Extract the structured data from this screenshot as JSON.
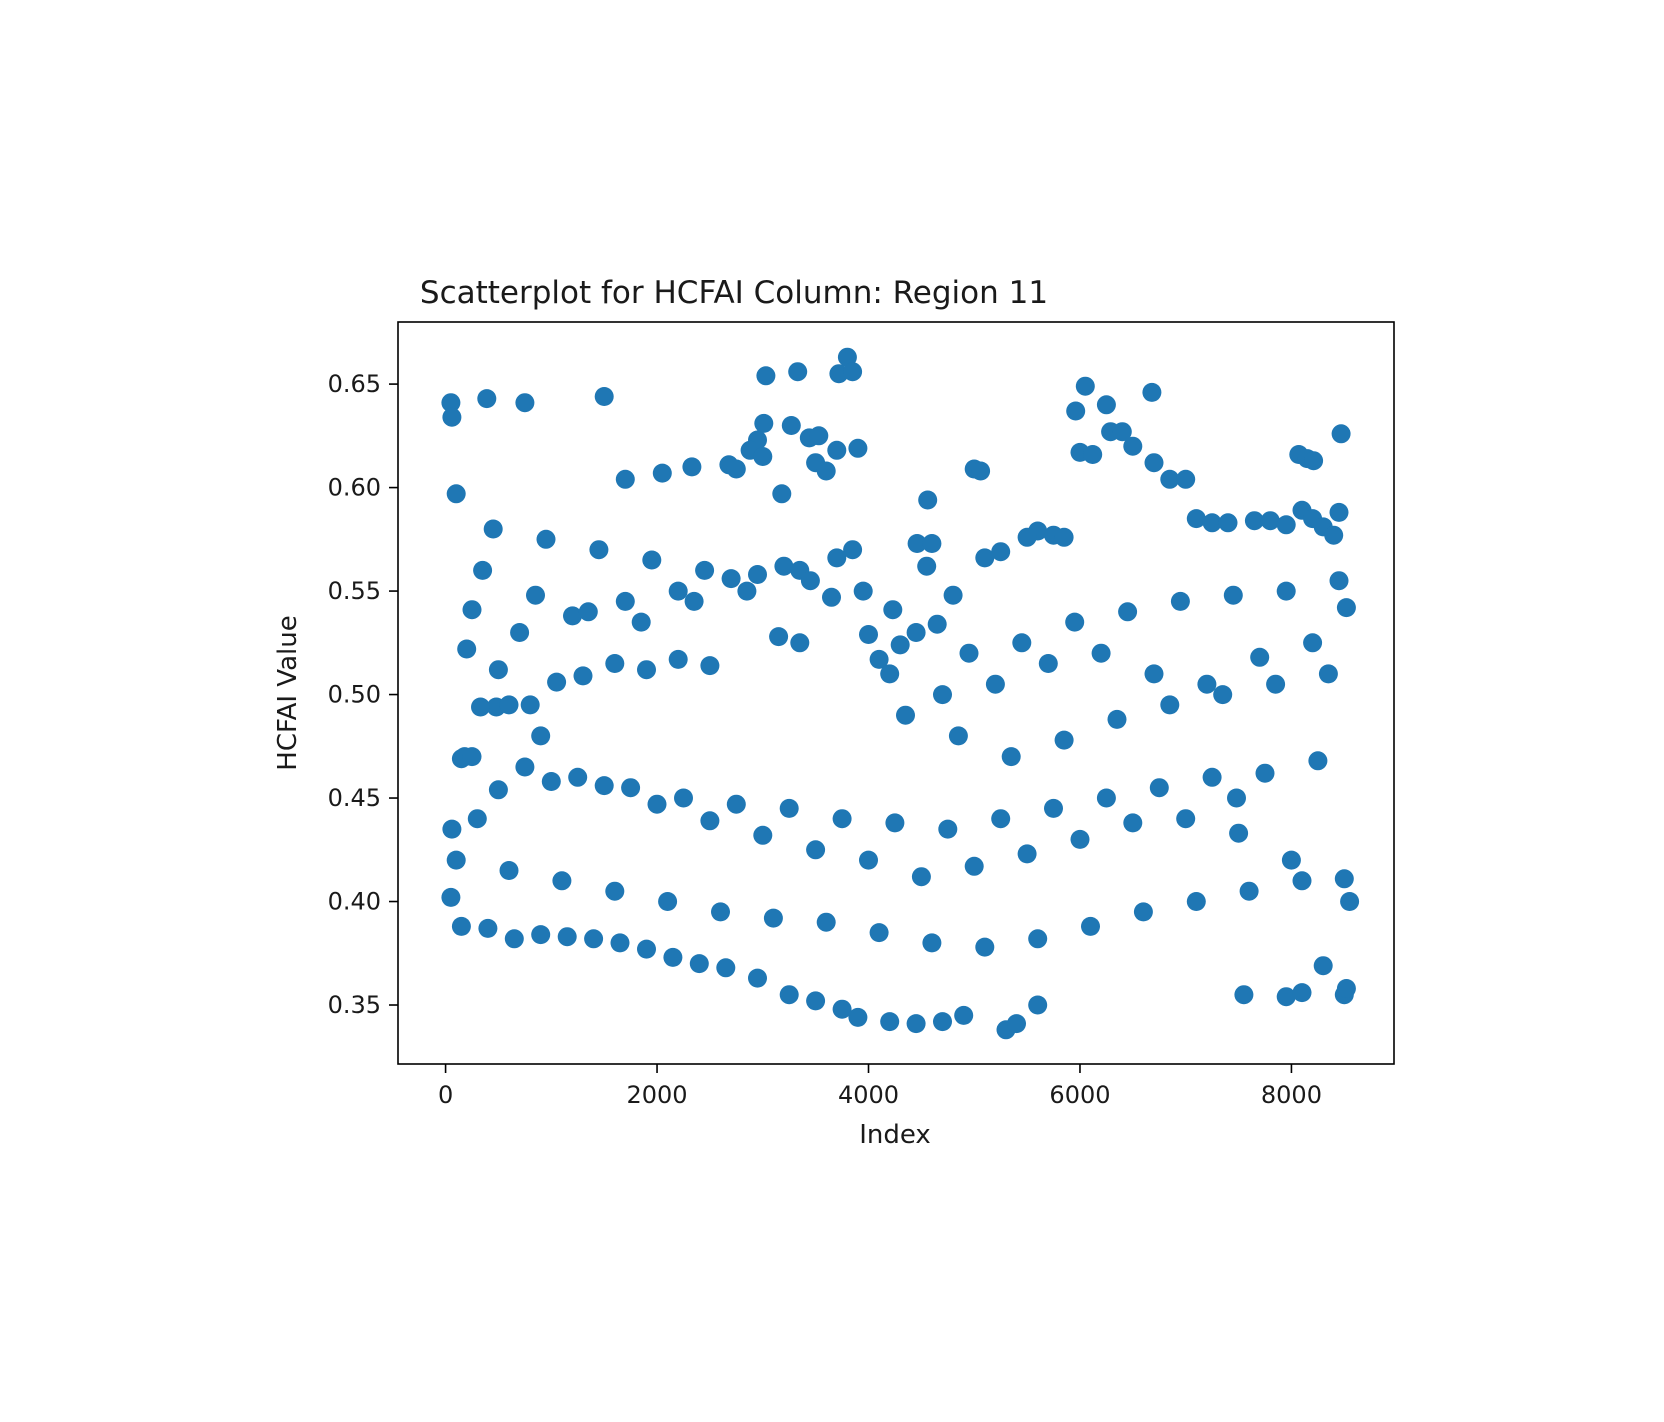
{
  "chart_data": {
    "type": "scatter",
    "title": "Scatterplot for HCFAI Column: Region 11",
    "xlabel": "Index",
    "ylabel": "HCFAI Value",
    "xlim": [
      -450,
      8970
    ],
    "ylim": [
      0.3215,
      0.68
    ],
    "xticks": [
      0,
      2000,
      4000,
      6000,
      8000
    ],
    "xtick_labels": [
      "0",
      "2000",
      "4000",
      "6000",
      "8000"
    ],
    "yticks": [
      0.35,
      0.4,
      0.45,
      0.5,
      0.55,
      0.6,
      0.65
    ],
    "ytick_labels": [
      "0.35",
      "0.40",
      "0.45",
      "0.50",
      "0.55",
      "0.60",
      "0.65"
    ],
    "grid": false,
    "marker_color": "#1f77b4",
    "series": [
      {
        "x": [
          50,
          60,
          390,
          750,
          1500,
          3030,
          3330,
          3800,
          3720,
          3850,
          3010,
          3270,
          3440,
          3530,
          3900,
          6050,
          5960,
          6250,
          6680,
          8470,
          8070,
          8150,
          8210,
          5000,
          5060,
          4560,
          4550,
          4460,
          4600,
          4230,
          4100,
          150,
          180,
          480,
          330,
          600,
          900,
          1700,
          2050,
          2330,
          2680,
          2750,
          2950,
          2880,
          3180,
          3000,
          3500,
          3600,
          3700,
          6000,
          6120,
          6290,
          6400,
          6500,
          6700,
          6850,
          7000,
          7100,
          7250,
          7400,
          7650,
          7800,
          7950,
          8100,
          8200,
          8300,
          8400,
          8450,
          8520,
          5600,
          5750,
          5850,
          5500,
          5250,
          5100,
          4800,
          4650,
          4300,
          4000,
          3650,
          3350,
          3150,
          2500,
          2200,
          1900,
          1600,
          1300,
          1050,
          800,
          500,
          250,
          100,
          7480,
          7550,
          7950,
          8100,
          8300,
          8500,
          8520,
          5300,
          5400,
          5600,
          4900,
          4700,
          4450,
          4200,
          3900,
          3750,
          3500,
          3250,
          2950,
          2650,
          2400,
          2150,
          1900,
          1650,
          1400,
          1150,
          900,
          650,
          400,
          150,
          50,
          60,
          300,
          500,
          1000,
          1500,
          2000,
          2500,
          3000,
          3500,
          4000,
          4500,
          5000,
          5500,
          6000,
          6500,
          7000,
          7500,
          8000,
          8500,
          200,
          700,
          1200,
          1700,
          2200,
          2700,
          3200,
          3700,
          4200,
          4700,
          5200,
          5700,
          6200,
          6700,
          7200,
          7700,
          8200,
          350,
          850,
          1350,
          1850,
          2350,
          2850,
          3350,
          3850,
          4350,
          4850,
          5350,
          5850,
          6350,
          6850,
          7350,
          7850,
          8350,
          100,
          600,
          1100,
          1600,
          2100,
          2600,
          3100,
          3600,
          4100,
          4600,
          5100,
          5600,
          6100,
          6600,
          7100,
          7600,
          8100,
          8550,
          250,
          750,
          1250,
          1750,
          2250,
          2750,
          3250,
          3750,
          4250,
          4750,
          5250,
          5750,
          6250,
          6750,
          7250,
          7750,
          8250,
          450,
          950,
          1450,
          1950,
          2450,
          2950,
          3450,
          3950,
          4450,
          4950,
          5450,
          5950,
          6450,
          6950,
          7450,
          7950,
          8450
        ],
        "y": [
          0.641,
          0.634,
          0.643,
          0.641,
          0.644,
          0.654,
          0.656,
          0.663,
          0.655,
          0.656,
          0.631,
          0.63,
          0.624,
          0.625,
          0.619,
          0.649,
          0.637,
          0.64,
          0.646,
          0.626,
          0.616,
          0.614,
          0.613,
          0.609,
          0.608,
          0.594,
          0.562,
          0.573,
          0.573,
          0.541,
          0.517,
          0.469,
          0.47,
          0.494,
          0.494,
          0.495,
          0.48,
          0.604,
          0.607,
          0.61,
          0.611,
          0.609,
          0.623,
          0.618,
          0.597,
          0.615,
          0.612,
          0.608,
          0.618,
          0.617,
          0.616,
          0.627,
          0.627,
          0.62,
          0.612,
          0.604,
          0.604,
          0.585,
          0.583,
          0.583,
          0.584,
          0.584,
          0.582,
          0.589,
          0.585,
          0.581,
          0.577,
          0.588,
          0.542,
          0.579,
          0.577,
          0.576,
          0.576,
          0.569,
          0.566,
          0.548,
          0.534,
          0.524,
          0.529,
          0.547,
          0.525,
          0.528,
          0.514,
          0.517,
          0.512,
          0.515,
          0.509,
          0.506,
          0.495,
          0.512,
          0.541,
          0.597,
          0.45,
          0.355,
          0.354,
          0.356,
          0.369,
          0.355,
          0.358,
          0.338,
          0.341,
          0.35,
          0.345,
          0.342,
          0.341,
          0.342,
          0.344,
          0.348,
          0.352,
          0.355,
          0.363,
          0.368,
          0.37,
          0.373,
          0.377,
          0.38,
          0.382,
          0.383,
          0.384,
          0.382,
          0.387,
          0.388,
          0.402,
          0.435,
          0.44,
          0.454,
          0.458,
          0.456,
          0.447,
          0.439,
          0.432,
          0.425,
          0.42,
          0.412,
          0.417,
          0.423,
          0.43,
          0.438,
          0.44,
          0.433,
          0.42,
          0.411,
          0.522,
          0.53,
          0.538,
          0.545,
          0.55,
          0.556,
          0.562,
          0.566,
          0.51,
          0.5,
          0.505,
          0.515,
          0.52,
          0.51,
          0.505,
          0.518,
          0.525,
          0.56,
          0.548,
          0.54,
          0.535,
          0.545,
          0.55,
          0.56,
          0.57,
          0.49,
          0.48,
          0.47,
          0.478,
          0.488,
          0.495,
          0.5,
          0.505,
          0.51,
          0.42,
          0.415,
          0.41,
          0.405,
          0.4,
          0.395,
          0.392,
          0.39,
          0.385,
          0.38,
          0.378,
          0.382,
          0.388,
          0.395,
          0.4,
          0.405,
          0.41,
          0.4,
          0.47,
          0.465,
          0.46,
          0.455,
          0.45,
          0.447,
          0.445,
          0.44,
          0.438,
          0.435,
          0.44,
          0.445,
          0.45,
          0.455,
          0.46,
          0.462,
          0.468,
          0.58,
          0.575,
          0.57,
          0.565,
          0.56,
          0.558,
          0.555,
          0.55,
          0.53,
          0.52,
          0.525,
          0.535,
          0.54,
          0.545,
          0.548,
          0.55,
          0.555
        ]
      }
    ]
  }
}
